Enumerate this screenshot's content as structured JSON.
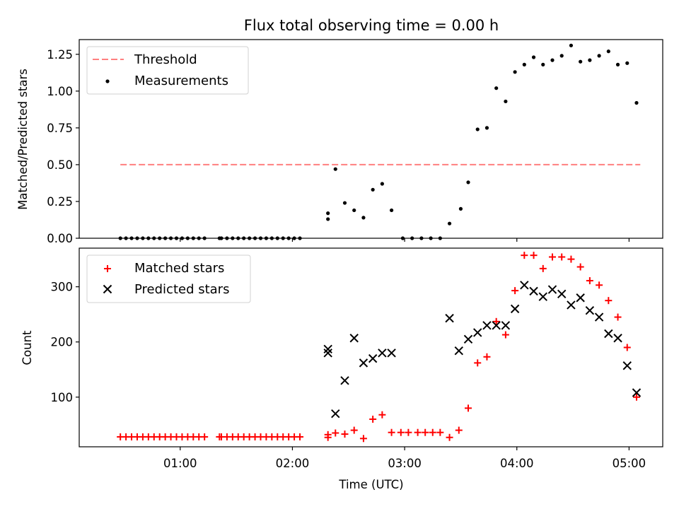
{
  "figure": {
    "title": "Flux total observing time = 0.00 h",
    "xlabel": "Time (UTC)",
    "colors": {
      "threshold": "#ff7f7f",
      "measurements": "#000000",
      "matched": "#ff0000",
      "predicted": "#000000",
      "axes": "#000000"
    }
  },
  "chart_data": [
    {
      "type": "scatter",
      "ylabel": "Matched/Predicted stars",
      "xlim": [
        "00:06",
        "05:18"
      ],
      "ylim": [
        0,
        1.35
      ],
      "x_ticks": [
        "01:00",
        "02:00",
        "03:00",
        "04:00",
        "05:00"
      ],
      "y_ticks": [
        "0.00",
        "0.25",
        "0.50",
        "0.75",
        "1.00",
        "1.25"
      ],
      "legend_position": "upper-left",
      "grid": false,
      "threshold": {
        "name": "Threshold",
        "value": 0.5,
        "x_start": "00:28",
        "x_end": "05:06"
      },
      "series": [
        {
          "name": "Measurements",
          "points": [
            [
              "00:28",
              0
            ],
            [
              "00:31",
              0
            ],
            [
              "00:34",
              0
            ],
            [
              "00:37",
              0
            ],
            [
              "00:40",
              0
            ],
            [
              "00:43",
              0
            ],
            [
              "00:46",
              0
            ],
            [
              "00:49",
              0
            ],
            [
              "00:52",
              0
            ],
            [
              "00:55",
              0
            ],
            [
              "00:58",
              0
            ],
            [
              "01:01",
              0
            ],
            [
              "01:04",
              0
            ],
            [
              "01:07",
              0
            ],
            [
              "01:10",
              0
            ],
            [
              "01:13",
              0
            ],
            [
              "01:21",
              0
            ],
            [
              "01:22",
              0
            ],
            [
              "01:25",
              0
            ],
            [
              "01:28",
              0
            ],
            [
              "01:31",
              0
            ],
            [
              "01:34",
              0
            ],
            [
              "01:37",
              0
            ],
            [
              "01:40",
              0
            ],
            [
              "01:43",
              0
            ],
            [
              "01:46",
              0
            ],
            [
              "01:49",
              0
            ],
            [
              "01:52",
              0
            ],
            [
              "01:55",
              0
            ],
            [
              "01:58",
              0
            ],
            [
              "02:01",
              0
            ],
            [
              "02:04",
              0
            ],
            [
              "02:19",
              0.13
            ],
            [
              "02:19",
              0.17
            ],
            [
              "02:23",
              0.47
            ],
            [
              "02:28",
              0.24
            ],
            [
              "02:33",
              0.19
            ],
            [
              "02:38",
              0.14
            ],
            [
              "02:43",
              0.33
            ],
            [
              "02:48",
              0.37
            ],
            [
              "02:53",
              0.19
            ],
            [
              "02:59",
              0
            ],
            [
              "03:04",
              0
            ],
            [
              "03:09",
              0
            ],
            [
              "03:14",
              0
            ],
            [
              "03:19",
              0
            ],
            [
              "03:24",
              0.1
            ],
            [
              "03:30",
              0.2
            ],
            [
              "03:34",
              0.38
            ],
            [
              "03:39",
              0.74
            ],
            [
              "03:44",
              0.75
            ],
            [
              "03:49",
              1.02
            ],
            [
              "03:54",
              0.93
            ],
            [
              "03:59",
              1.13
            ],
            [
              "04:04",
              1.18
            ],
            [
              "04:09",
              1.23
            ],
            [
              "04:14",
              1.18
            ],
            [
              "04:19",
              1.21
            ],
            [
              "04:24",
              1.24
            ],
            [
              "04:29",
              1.31
            ],
            [
              "04:34",
              1.2
            ],
            [
              "04:39",
              1.21
            ],
            [
              "04:44",
              1.24
            ],
            [
              "04:49",
              1.27
            ],
            [
              "04:54",
              1.18
            ],
            [
              "04:59",
              1.19
            ],
            [
              "05:04",
              0.92
            ]
          ]
        }
      ]
    },
    {
      "type": "scatter",
      "ylabel": "Count",
      "xlim": [
        "00:06",
        "05:18"
      ],
      "ylim": [
        10,
        370
      ],
      "x_ticks": [
        "01:00",
        "02:00",
        "03:00",
        "04:00",
        "05:00"
      ],
      "y_ticks": [
        "100",
        "200",
        "300"
      ],
      "legend_position": "upper-left",
      "grid": false,
      "series": [
        {
          "name": "Matched stars",
          "points": [
            [
              "00:28",
              28
            ],
            [
              "00:31",
              28
            ],
            [
              "00:34",
              28
            ],
            [
              "00:37",
              28
            ],
            [
              "00:40",
              28
            ],
            [
              "00:43",
              28
            ],
            [
              "00:46",
              28
            ],
            [
              "00:49",
              28
            ],
            [
              "00:52",
              28
            ],
            [
              "00:55",
              28
            ],
            [
              "00:58",
              28
            ],
            [
              "01:01",
              28
            ],
            [
              "01:04",
              28
            ],
            [
              "01:07",
              28
            ],
            [
              "01:10",
              28
            ],
            [
              "01:13",
              28
            ],
            [
              "01:21",
              28
            ],
            [
              "01:22",
              28
            ],
            [
              "01:25",
              28
            ],
            [
              "01:28",
              28
            ],
            [
              "01:31",
              28
            ],
            [
              "01:34",
              28
            ],
            [
              "01:37",
              28
            ],
            [
              "01:40",
              28
            ],
            [
              "01:43",
              28
            ],
            [
              "01:46",
              28
            ],
            [
              "01:49",
              28
            ],
            [
              "01:52",
              28
            ],
            [
              "01:55",
              28
            ],
            [
              "01:58",
              28
            ],
            [
              "02:01",
              28
            ],
            [
              "02:04",
              28
            ],
            [
              "02:19",
              27
            ],
            [
              "02:19",
              32
            ],
            [
              "02:23",
              35
            ],
            [
              "02:28",
              33
            ],
            [
              "02:33",
              40
            ],
            [
              "02:38",
              25
            ],
            [
              "02:43",
              60
            ],
            [
              "02:48",
              68
            ],
            [
              "02:53",
              36
            ],
            [
              "02:58",
              36
            ],
            [
              "03:02",
              36
            ],
            [
              "03:07",
              36
            ],
            [
              "03:11",
              36
            ],
            [
              "03:15",
              36
            ],
            [
              "03:19",
              36
            ],
            [
              "03:24",
              27
            ],
            [
              "03:29",
              40
            ],
            [
              "03:34",
              80
            ],
            [
              "03:39",
              162
            ],
            [
              "03:44",
              173
            ],
            [
              "03:49",
              237
            ],
            [
              "03:54",
              213
            ],
            [
              "03:59",
              293
            ],
            [
              "04:04",
              357
            ],
            [
              "04:09",
              357
            ],
            [
              "04:14",
              333
            ],
            [
              "04:19",
              354
            ],
            [
              "04:24",
              354
            ],
            [
              "04:29",
              350
            ],
            [
              "04:34",
              336
            ],
            [
              "04:39",
              311
            ],
            [
              "04:44",
              303
            ],
            [
              "04:49",
              275
            ],
            [
              "04:54",
              245
            ],
            [
              "04:59",
              190
            ],
            [
              "05:04",
              100
            ]
          ]
        },
        {
          "name": "Predicted stars",
          "points": [
            [
              "02:19",
              187
            ],
            [
              "02:19",
              180
            ],
            [
              "02:23",
              70
            ],
            [
              "02:28",
              130
            ],
            [
              "02:33",
              207
            ],
            [
              "02:38",
              162
            ],
            [
              "02:43",
              170
            ],
            [
              "02:48",
              180
            ],
            [
              "02:53",
              180
            ],
            [
              "03:24",
              243
            ],
            [
              "03:29",
              184
            ],
            [
              "03:34",
              205
            ],
            [
              "03:39",
              217
            ],
            [
              "03:44",
              230
            ],
            [
              "03:49",
              230
            ],
            [
              "03:54",
              230
            ],
            [
              "03:59",
              260
            ],
            [
              "04:04",
              303
            ],
            [
              "04:09",
              292
            ],
            [
              "04:14",
              282
            ],
            [
              "04:19",
              295
            ],
            [
              "04:24",
              287
            ],
            [
              "04:29",
              267
            ],
            [
              "04:34",
              280
            ],
            [
              "04:39",
              257
            ],
            [
              "04:44",
              245
            ],
            [
              "04:49",
              215
            ],
            [
              "04:54",
              207
            ],
            [
              "04:59",
              157
            ],
            [
              "05:04",
              108
            ]
          ]
        }
      ]
    }
  ]
}
